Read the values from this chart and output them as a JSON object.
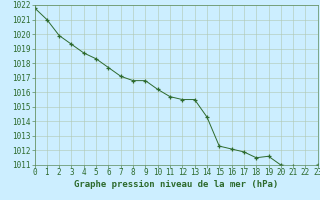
{
  "x": [
    0,
    1,
    2,
    3,
    4,
    5,
    6,
    7,
    8,
    9,
    10,
    11,
    12,
    13,
    14,
    15,
    16,
    17,
    18,
    19,
    20,
    21,
    22,
    23
  ],
  "y": [
    1021.8,
    1021.0,
    1019.9,
    1019.3,
    1018.7,
    1018.3,
    1017.7,
    1017.1,
    1016.8,
    1016.8,
    1016.2,
    1015.7,
    1015.5,
    1015.5,
    1014.3,
    1012.3,
    1012.1,
    1011.9,
    1011.5,
    1011.6,
    1011.0,
    1010.9,
    1010.8,
    1011.0
  ],
  "line_color": "#2d6a2d",
  "marker": "+",
  "bg_color": "#cceeff",
  "grid_color": "#b0c8b0",
  "xlabel": "Graphe pression niveau de la mer (hPa)",
  "xlabel_color": "#2d6a2d",
  "tick_label_color": "#2d6a2d",
  "ylim_min": 1011,
  "ylim_max": 1022,
  "xlim_min": 0,
  "xlim_max": 23,
  "ytick_step": 1,
  "xtick_step": 1,
  "font_size_ticks": 5.5,
  "font_size_xlabel": 6.5
}
